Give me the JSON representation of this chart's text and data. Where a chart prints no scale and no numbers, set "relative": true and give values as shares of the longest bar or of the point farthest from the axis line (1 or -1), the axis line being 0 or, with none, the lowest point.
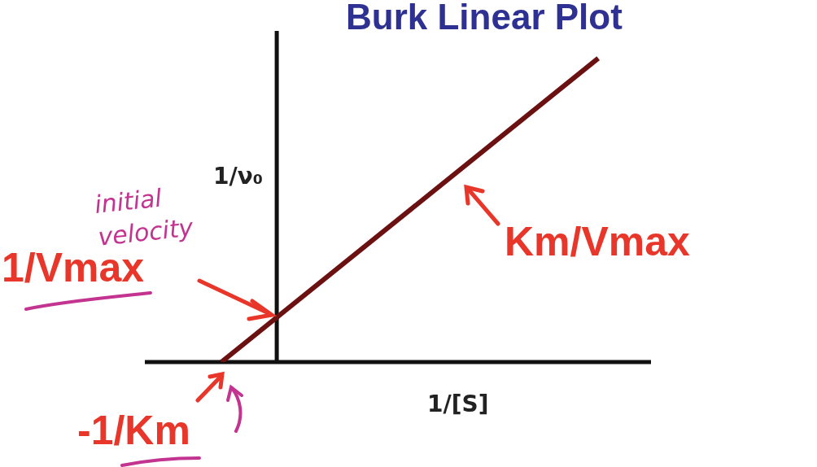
{
  "chart_data": {
    "type": "line",
    "title": "Burk Linear Plot",
    "xlabel": "1/[S]",
    "ylabel": "1/ν₀",
    "relative": true,
    "categories": [
      null,
      null
    ],
    "series": [
      {
        "color": "#6b1111",
        "values": [
          0,
          1
        ]
      }
    ],
    "marker": "none",
    "line_style": "solid",
    "tick_labels": false,
    "annotations": [
      "1/Vmax",
      "-1/Km",
      "Km/Vmax",
      "initial velocity"
    ]
  }
}
